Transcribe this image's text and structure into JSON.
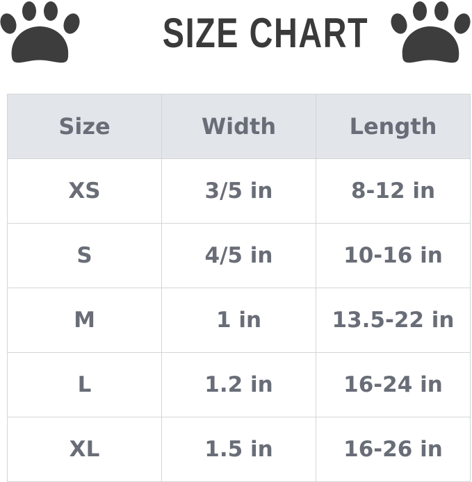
{
  "title": "SIZE CHART",
  "icons": {
    "left": "paw-print-icon",
    "right": "paw-print-icon"
  },
  "colors": {
    "header_bg": "#e2e6ea",
    "text": "#696d77",
    "paw": "#3d3d3d"
  },
  "table": {
    "headers": [
      "Size",
      "Width",
      "Length"
    ],
    "rows": [
      [
        "XS",
        "3/5 in",
        "8-12 in"
      ],
      [
        "S",
        "4/5 in",
        "10-16 in"
      ],
      [
        "M",
        "1 in",
        "13.5-22 in"
      ],
      [
        "L",
        "1.2 in",
        "16-24 in"
      ],
      [
        "XL",
        "1.5 in",
        "16-26 in"
      ]
    ]
  }
}
